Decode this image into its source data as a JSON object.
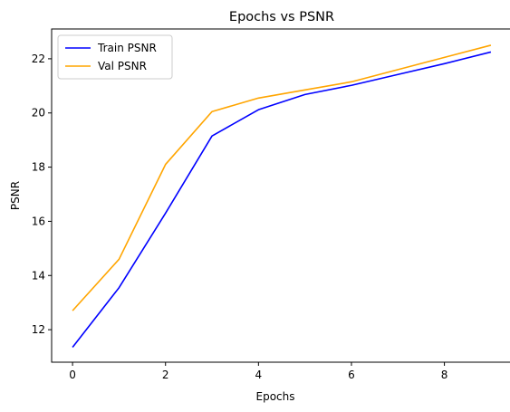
{
  "chart_data": {
    "type": "line",
    "title": "Epochs vs PSNR",
    "xlabel": "Epochs",
    "ylabel": "PSNR",
    "x": [
      0,
      1,
      2,
      3,
      4,
      5,
      6,
      7,
      8,
      9
    ],
    "xlim": [
      -0.45,
      9.45
    ],
    "ylim": [
      10.8,
      23.1
    ],
    "xticks": [
      0,
      2,
      4,
      6,
      8
    ],
    "yticks": [
      12,
      14,
      16,
      18,
      20,
      22
    ],
    "grid": false,
    "legend": "upper-left",
    "series": [
      {
        "name": "Train PSNR",
        "color": "#0000ff",
        "values": [
          11.35,
          13.55,
          16.3,
          19.15,
          20.12,
          20.68,
          21.02,
          21.42,
          21.82,
          22.25
        ]
      },
      {
        "name": "Val PSNR",
        "color": "#ffa500",
        "values": [
          12.7,
          14.6,
          18.1,
          20.05,
          20.55,
          20.85,
          21.15,
          21.6,
          22.05,
          22.5
        ]
      }
    ]
  }
}
